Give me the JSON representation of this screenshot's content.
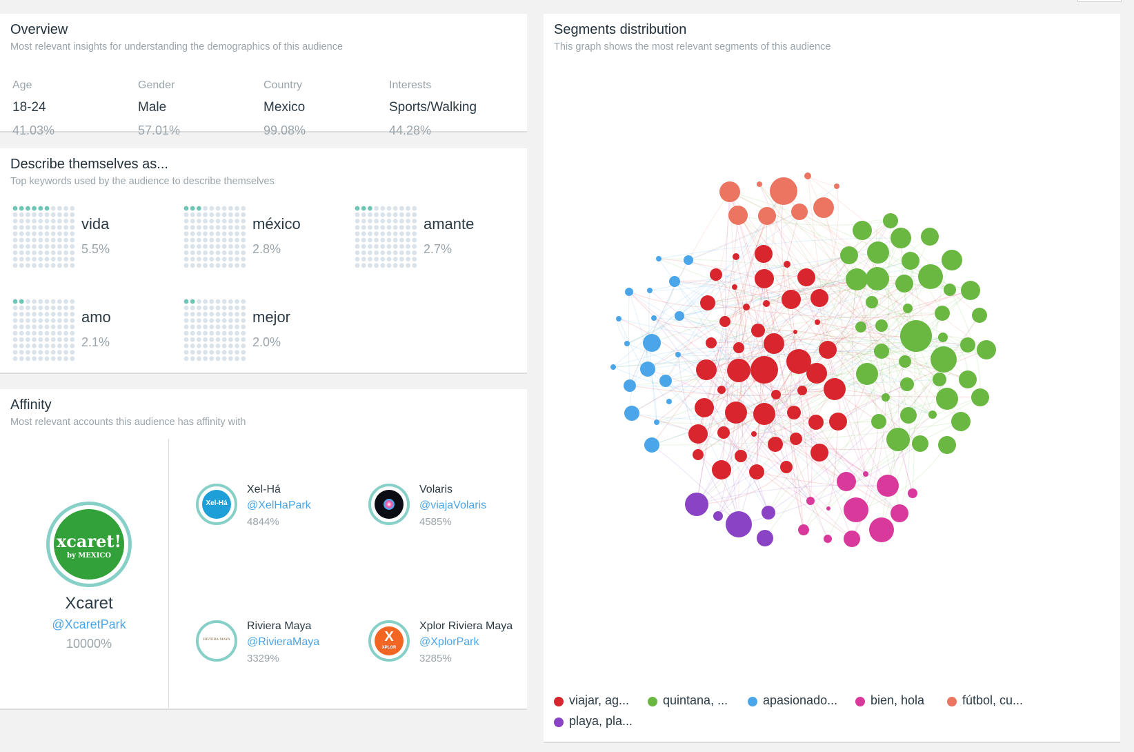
{
  "overview": {
    "title": "Overview",
    "subtitle": "Most relevant insights for understanding the demographics of this audience",
    "stats": [
      {
        "label": "Age",
        "value": "18-24",
        "pct": "41.03%"
      },
      {
        "label": "Gender",
        "value": "Male",
        "pct": "57.01%"
      },
      {
        "label": "Country",
        "value": "Mexico",
        "pct": "99.08%"
      },
      {
        "label": "Interests",
        "value": "Sports/Walking",
        "pct": "44.28%"
      }
    ]
  },
  "describe": {
    "title": "Describe themselves as...",
    "subtitle": "Top keywords used by the audience to describe themselves",
    "keywords": [
      {
        "word": "vida",
        "pct": "5.5%",
        "filled": 6
      },
      {
        "word": "méxico",
        "pct": "2.8%",
        "filled": 3
      },
      {
        "word": "amante",
        "pct": "2.7%",
        "filled": 3
      },
      {
        "word": "amo",
        "pct": "2.1%",
        "filled": 2
      },
      {
        "word": "mejor",
        "pct": "2.0%",
        "filled": 2
      }
    ]
  },
  "affinity": {
    "title": "Affinity",
    "subtitle": "Most relevant accounts this audience has affinity with",
    "main": {
      "name": "Xcaret",
      "handle": "@XcaretPark",
      "pct": "10000%",
      "logo_text": "xcaret!",
      "logo_sub": "by MEXICO"
    },
    "accounts": [
      {
        "name": "Xel-Há",
        "handle": "@XelHaPark",
        "pct": "4844%",
        "logo_text": "Xel-Há",
        "icon": "xelha-logo-icon"
      },
      {
        "name": "Volaris",
        "handle": "@viajaVolaris",
        "pct": "4585%",
        "icon": "volaris-logo-icon"
      },
      {
        "name": "Riviera Maya",
        "handle": "@RivieraMaya",
        "pct": "3329%",
        "logo_text": "RIVIERA MAYA",
        "icon": "riviera-maya-logo-icon"
      },
      {
        "name": "Xplor Riviera Maya",
        "handle": "@XplorPark",
        "pct": "3285%",
        "logo_text": "X",
        "logo_sub": "XPLOR",
        "icon": "xplor-logo-icon"
      }
    ]
  },
  "segments": {
    "title": "Segments distribution",
    "subtitle": "This graph shows the most relevant segments of this audience",
    "colors": {
      "red": "#d9262e",
      "green": "#6ab842",
      "blue": "#4aa6e8",
      "pink": "#d9399a",
      "orange": "#ec7561",
      "purple": "#8a43c4"
    },
    "legend": [
      {
        "label": "viajar, ag...",
        "color": "#d9262e"
      },
      {
        "label": "quintana, ...",
        "color": "#6ab842"
      },
      {
        "label": "apasionado...",
        "color": "#4aa6e8"
      },
      {
        "label": "bien, hola",
        "color": "#d9399a"
      },
      {
        "label": "fútbol, cu...",
        "color": "#ec7561"
      },
      {
        "label": "playa, pla...",
        "color": "#8a43c4"
      }
    ]
  }
}
